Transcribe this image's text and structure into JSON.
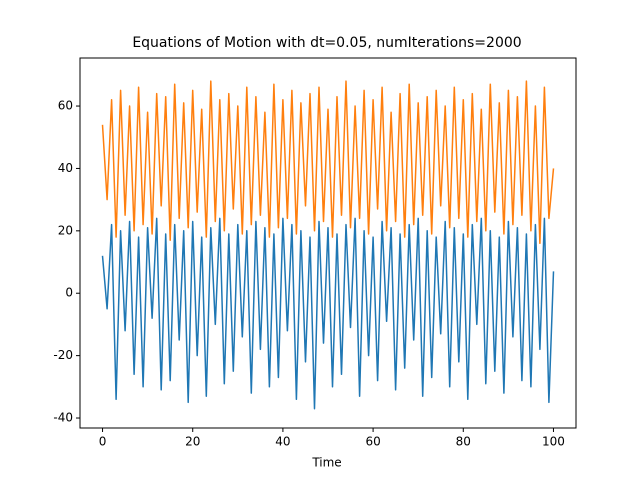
{
  "chart_data": {
    "type": "line",
    "title": "Equations of Motion with dt=0.05, numIterations=2000",
    "x_label": "Time",
    "x": [
      0,
      1,
      2,
      3,
      4,
      5,
      6,
      7,
      8,
      9,
      10,
      11,
      12,
      13,
      14,
      15,
      16,
      17,
      18,
      19,
      20,
      21,
      22,
      23,
      24,
      25,
      26,
      27,
      28,
      29,
      30,
      31,
      32,
      33,
      34,
      35,
      36,
      37,
      38,
      39,
      40,
      41,
      42,
      43,
      44,
      45,
      46,
      47,
      48,
      49,
      50,
      51,
      52,
      53,
      54,
      55,
      56,
      57,
      58,
      59,
      60,
      61,
      62,
      63,
      64,
      65,
      66,
      67,
      68,
      69,
      70,
      71,
      72,
      73,
      74,
      75,
      76,
      77,
      78,
      79,
      80,
      81,
      82,
      83,
      84,
      85,
      86,
      87,
      88,
      89,
      90,
      91,
      92,
      93,
      94,
      95,
      96,
      97,
      98,
      99,
      100
    ],
    "series": [
      {
        "color": "#1f77b4",
        "values": [
          12,
          -5,
          22,
          -34,
          20,
          -12,
          23,
          -26,
          18,
          -30,
          21,
          -8,
          24,
          -31,
          19,
          -28,
          22,
          -15,
          20,
          -35,
          23,
          -20,
          18,
          -33,
          21,
          -10,
          24,
          -29,
          19,
          -25,
          22,
          -14,
          20,
          -32,
          23,
          -18,
          21,
          -30,
          19,
          -27,
          24,
          -12,
          22,
          -34,
          20,
          -22,
          18,
          -37,
          23,
          -16,
          21,
          -30,
          19,
          -26,
          22,
          -11,
          24,
          -33,
          20,
          -20,
          18,
          -28,
          23,
          -9,
          21,
          -31,
          19,
          -24,
          22,
          -15,
          24,
          -33,
          20,
          -27,
          18,
          -13,
          23,
          -30,
          21,
          -22,
          19,
          -34,
          22,
          -10,
          24,
          -29,
          20,
          -25,
          18,
          -32,
          23,
          -14,
          21,
          -28,
          19,
          -30,
          22,
          -18,
          24,
          -35,
          7
        ]
      },
      {
        "color": "#ff7f0e",
        "values": [
          54,
          30,
          62,
          18,
          65,
          25,
          60,
          20,
          66,
          22,
          58,
          19,
          64,
          28,
          63,
          17,
          67,
          24,
          61,
          21,
          65,
          26,
          59,
          18,
          68,
          23,
          62,
          20,
          64,
          27,
          60,
          19,
          66,
          22,
          63,
          25,
          58,
          18,
          67,
          21,
          62,
          24,
          65,
          19,
          61,
          28,
          64,
          20,
          66,
          23,
          59,
          18,
          63,
          25,
          68,
          21,
          60,
          24,
          65,
          19,
          62,
          27,
          66,
          20,
          58,
          23,
          64,
          18,
          67,
          22,
          61,
          25,
          63,
          19,
          65,
          28,
          60,
          21,
          66,
          24,
          62,
          18,
          64,
          23,
          59,
          20,
          67,
          26,
          61,
          19,
          65,
          22,
          63,
          25,
          68,
          20,
          60,
          16,
          66,
          24,
          40
        ]
      }
    ],
    "xlim": [
      -5,
      105
    ],
    "ylim": [
      -43.2,
      75.4
    ],
    "xticks": [
      0,
      20,
      40,
      60,
      80,
      100
    ],
    "yticks": [
      -40,
      -20,
      0,
      20,
      40,
      60
    ]
  }
}
